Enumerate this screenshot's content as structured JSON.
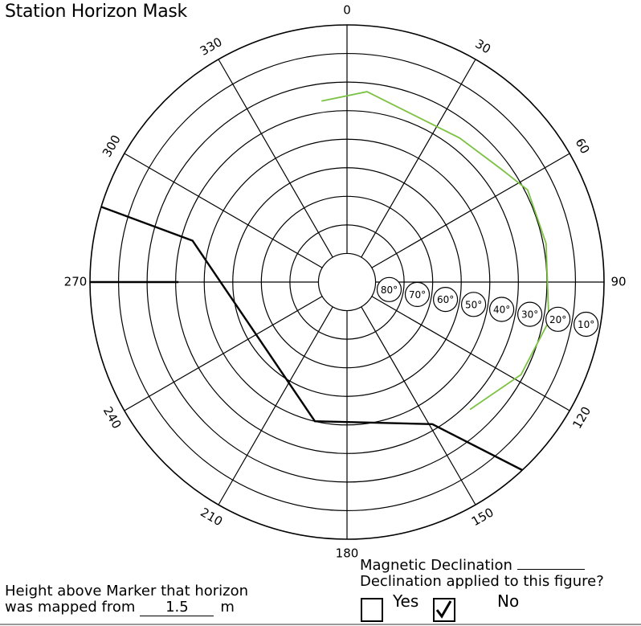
{
  "title": "Station Horizon Mask",
  "azimuth_labels": [
    "0",
    "30",
    "60",
    "90",
    "120",
    "150",
    "180",
    "210",
    "240",
    "270",
    "300",
    "330"
  ],
  "elevation_labels": [
    "80°",
    "70°",
    "60°",
    "50°",
    "40°",
    "30°",
    "20°",
    "10°"
  ],
  "declination": {
    "label": "Magnetic Declination",
    "applied_question": "Declination applied to this figure?",
    "yes_label": "Yes",
    "no_label": "No",
    "selected": "No",
    "check_mark": "✓"
  },
  "height": {
    "line1": "Height above Marker that horizon",
    "line2_prefix": "was mapped from",
    "value": "1.5",
    "unit": "m"
  },
  "colors": {
    "black_trace": "#000000",
    "green_trace": "#7cc242",
    "grid": "#000000"
  },
  "chart_data": {
    "type": "polar",
    "radial_axis": "elevation (deg), 90 at center, 0 at rim",
    "elevation_ticks": [
      80,
      70,
      60,
      50,
      40,
      30,
      20,
      10
    ],
    "azimuth_ticks": [
      0,
      30,
      60,
      90,
      120,
      150,
      180,
      210,
      240,
      270,
      300,
      330
    ],
    "series": [
      {
        "color": "#000000",
        "points": [
          {
            "az": 287,
            "el": 0
          },
          {
            "az": 285,
            "el": 34
          },
          {
            "az": 193,
            "el": 40
          },
          {
            "az": 149,
            "el": 32
          },
          {
            "az": 137,
            "el": 0
          }
        ],
        "tail": [
          {
            "az": 270,
            "el": 0
          },
          {
            "az": 270,
            "el": 31
          }
        ]
      },
      {
        "color": "#7cc242",
        "points": [
          {
            "az": 352,
            "el": 26
          },
          {
            "az": 6,
            "el": 23
          },
          {
            "az": 38,
            "el": 26
          },
          {
            "az": 54,
            "el": 23
          },
          {
            "az": 63,
            "el": 19
          },
          {
            "az": 79,
            "el": 19
          },
          {
            "az": 101,
            "el": 18
          },
          {
            "az": 118,
            "el": 21
          },
          {
            "az": 136,
            "el": 28
          }
        ]
      }
    ]
  }
}
